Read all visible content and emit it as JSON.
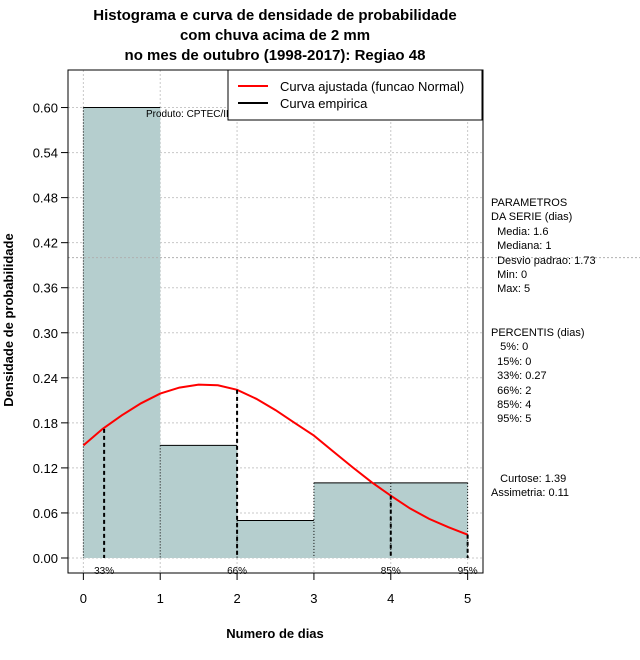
{
  "chart_data": {
    "type": "histogram",
    "title_lines": [
      "Histograma e curva de densidade de probabilidade",
      "com chuva acima de 2 mm",
      "no mes de outubro (1998-2017): Regiao 48"
    ],
    "xlabel": "Numero de dias",
    "ylabel": "Densidade de probabilidade",
    "xlim": [
      -0.2,
      5.2
    ],
    "ylim": [
      -0.02,
      0.65
    ],
    "x_ticks": [
      "0",
      "1",
      "2",
      "3",
      "4",
      "5"
    ],
    "y_ticks": [
      "0.00",
      "0.06",
      "0.12",
      "0.18",
      "0.24",
      "0.30",
      "0.36",
      "0.42",
      "0.48",
      "0.54",
      "0.60"
    ],
    "bins": [
      {
        "from": 0,
        "to": 1,
        "density": 0.6
      },
      {
        "from": 1,
        "to": 2,
        "density": 0.15
      },
      {
        "from": 2,
        "to": 3,
        "density": 0.05
      },
      {
        "from": 3,
        "to": 4,
        "density": 0.1
      },
      {
        "from": 4,
        "to": 5,
        "density": 0.1
      }
    ],
    "bar_color": "#b5cece",
    "fitted_curve": {
      "name": "Curva ajustada (funcao Normal)",
      "color": "#ff0000",
      "x": [
        0,
        0.25,
        0.5,
        0.75,
        1.0,
        1.25,
        1.5,
        1.75,
        2.0,
        2.25,
        2.5,
        2.75,
        3.0,
        3.25,
        3.5,
        3.75,
        4.0,
        4.25,
        4.5,
        4.75,
        5.0
      ],
      "y": [
        0.15,
        0.172,
        0.19,
        0.206,
        0.219,
        0.227,
        0.231,
        0.23,
        0.224,
        0.212,
        0.197,
        0.18,
        0.163,
        0.142,
        0.121,
        0.101,
        0.083,
        0.066,
        0.052,
        0.041,
        0.031
      ]
    },
    "empirical_curve": {
      "name": "Curva empirica",
      "color": "#000000"
    },
    "percentile_marks": [
      {
        "label": "33%",
        "x": 0.27,
        "y": 0.172
      },
      {
        "label": "66%",
        "x": 2,
        "y": 0.224
      },
      {
        "label": "85%",
        "x": 4,
        "y": 0.083
      },
      {
        "label": "95%",
        "x": 5,
        "y": 0.031
      }
    ],
    "horizontal_ref_y": 0.4,
    "grid": true,
    "legend_position": "top-right",
    "watermark": "Produto: CPTEC/INPE"
  },
  "side_panel": {
    "params": [
      "PARAMETROS",
      "DA SERIE (dias)",
      "  Media: 1.6",
      "  Mediana: 1",
      "  Desvio padrao: 1.73",
      "  Min: 0",
      "  Max: 5"
    ],
    "percentis": [
      "PERCENTIS (dias)",
      "   5%: 0",
      "  15%: 0",
      "  33%: 0.27",
      "  66%: 2",
      "  85%: 4",
      "  95%: 5"
    ],
    "shape": [
      "   Curtose: 1.39",
      "Assimetria: 0.11"
    ]
  }
}
